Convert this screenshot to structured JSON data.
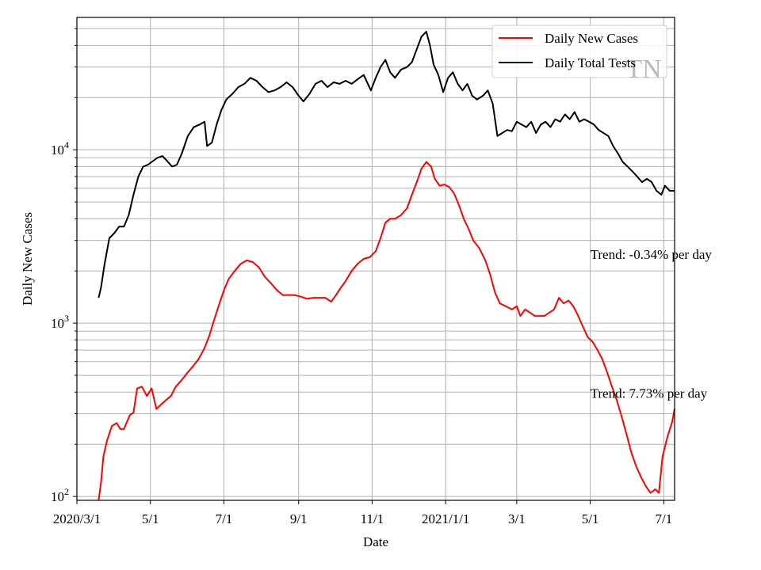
{
  "chart_data": {
    "type": "line",
    "title": "",
    "xlabel": "Date",
    "ylabel": "Daily New Cases",
    "yscale": "log",
    "ylim": [
      95,
      58000
    ],
    "xlim": [
      "2020-03-01",
      "2021-07-10"
    ],
    "grid": true,
    "legend_position": "top-right",
    "watermark": "TN",
    "x_ticks": [
      {
        "date": "2020-03-01",
        "label": "2020/3/1"
      },
      {
        "date": "2020-05-01",
        "label": "5/1"
      },
      {
        "date": "2020-07-01",
        "label": "7/1"
      },
      {
        "date": "2020-09-01",
        "label": "9/1"
      },
      {
        "date": "2020-11-01",
        "label": "11/1"
      },
      {
        "date": "2021-01-01",
        "label": "2021/1/1"
      },
      {
        "date": "2021-03-01",
        "label": "3/1"
      },
      {
        "date": "2021-05-01",
        "label": "5/1"
      },
      {
        "date": "2021-07-01",
        "label": "7/1"
      }
    ],
    "y_ticks": [
      {
        "value": 100,
        "base": "10",
        "exp": "2"
      },
      {
        "value": 1000,
        "base": "10",
        "exp": "3"
      },
      {
        "value": 10000,
        "base": "10",
        "exp": "4"
      }
    ],
    "annotations": [
      {
        "text": "Trend: -0.34% per day",
        "date": "2021-05-01",
        "value": 2350
      },
      {
        "text": "Trend: 7.73% per day",
        "date": "2021-05-01",
        "value": 370
      }
    ],
    "series": [
      {
        "name": "Daily New Cases",
        "color": "#ff0000",
        "points": [
          [
            "2020-03-19",
            95
          ],
          [
            "2020-03-21",
            120
          ],
          [
            "2020-03-23",
            170
          ],
          [
            "2020-03-26",
            210
          ],
          [
            "2020-03-30",
            255
          ],
          [
            "2020-04-03",
            265
          ],
          [
            "2020-04-06",
            245
          ],
          [
            "2020-04-09",
            245
          ],
          [
            "2020-04-14",
            295
          ],
          [
            "2020-04-17",
            305
          ],
          [
            "2020-04-20",
            420
          ],
          [
            "2020-04-24",
            430
          ],
          [
            "2020-04-28",
            380
          ],
          [
            "2020-05-02",
            420
          ],
          [
            "2020-05-06",
            320
          ],
          [
            "2020-05-10",
            340
          ],
          [
            "2020-05-14",
            360
          ],
          [
            "2020-05-18",
            380
          ],
          [
            "2020-05-22",
            430
          ],
          [
            "2020-05-27",
            470
          ],
          [
            "2020-06-01",
            520
          ],
          [
            "2020-06-05",
            560
          ],
          [
            "2020-06-10",
            620
          ],
          [
            "2020-06-15",
            720
          ],
          [
            "2020-06-19",
            850
          ],
          [
            "2020-06-23",
            1050
          ],
          [
            "2020-06-27",
            1280
          ],
          [
            "2020-07-01",
            1550
          ],
          [
            "2020-07-05",
            1800
          ],
          [
            "2020-07-10",
            2000
          ],
          [
            "2020-07-15",
            2200
          ],
          [
            "2020-07-20",
            2300
          ],
          [
            "2020-07-25",
            2250
          ],
          [
            "2020-07-30",
            2100
          ],
          [
            "2020-08-04",
            1850
          ],
          [
            "2020-08-09",
            1700
          ],
          [
            "2020-08-14",
            1550
          ],
          [
            "2020-08-19",
            1450
          ],
          [
            "2020-08-24",
            1450
          ],
          [
            "2020-08-29",
            1450
          ],
          [
            "2020-09-03",
            1420
          ],
          [
            "2020-09-08",
            1380
          ],
          [
            "2020-09-13",
            1400
          ],
          [
            "2020-09-18",
            1400
          ],
          [
            "2020-09-23",
            1400
          ],
          [
            "2020-09-28",
            1330
          ],
          [
            "2020-10-02",
            1450
          ],
          [
            "2020-10-06",
            1600
          ],
          [
            "2020-10-10",
            1750
          ],
          [
            "2020-10-15",
            2000
          ],
          [
            "2020-10-20",
            2200
          ],
          [
            "2020-10-25",
            2350
          ],
          [
            "2020-10-30",
            2400
          ],
          [
            "2020-11-04",
            2600
          ],
          [
            "2020-11-08",
            3100
          ],
          [
            "2020-11-12",
            3800
          ],
          [
            "2020-11-16",
            4000
          ],
          [
            "2020-11-20",
            4000
          ],
          [
            "2020-11-25",
            4200
          ],
          [
            "2020-11-30",
            4600
          ],
          [
            "2020-12-04",
            5500
          ],
          [
            "2020-12-08",
            6500
          ],
          [
            "2020-12-12",
            7800
          ],
          [
            "2020-12-16",
            8500
          ],
          [
            "2020-12-20",
            8000
          ],
          [
            "2020-12-23",
            6800
          ],
          [
            "2020-12-27",
            6200
          ],
          [
            "2020-12-31",
            6300
          ],
          [
            "2021-01-04",
            6100
          ],
          [
            "2021-01-08",
            5600
          ],
          [
            "2021-01-12",
            4800
          ],
          [
            "2021-01-16",
            4000
          ],
          [
            "2021-01-20",
            3500
          ],
          [
            "2021-01-24",
            3000
          ],
          [
            "2021-01-29",
            2700
          ],
          [
            "2021-02-03",
            2300
          ],
          [
            "2021-02-07",
            1900
          ],
          [
            "2021-02-11",
            1500
          ],
          [
            "2021-02-15",
            1300
          ],
          [
            "2021-02-20",
            1250
          ],
          [
            "2021-02-25",
            1200
          ],
          [
            "2021-03-01",
            1250
          ],
          [
            "2021-03-04",
            1100
          ],
          [
            "2021-03-08",
            1200
          ],
          [
            "2021-03-12",
            1150
          ],
          [
            "2021-03-16",
            1100
          ],
          [
            "2021-03-20",
            1100
          ],
          [
            "2021-03-24",
            1100
          ],
          [
            "2021-03-28",
            1150
          ],
          [
            "2021-04-01",
            1200
          ],
          [
            "2021-04-05",
            1400
          ],
          [
            "2021-04-09",
            1300
          ],
          [
            "2021-04-13",
            1350
          ],
          [
            "2021-04-17",
            1250
          ],
          [
            "2021-04-21",
            1100
          ],
          [
            "2021-04-25",
            950
          ],
          [
            "2021-04-29",
            830
          ],
          [
            "2021-05-03",
            780
          ],
          [
            "2021-05-07",
            700
          ],
          [
            "2021-05-11",
            620
          ],
          [
            "2021-05-15",
            520
          ],
          [
            "2021-05-19",
            430
          ],
          [
            "2021-05-23",
            360
          ],
          [
            "2021-05-27",
            290
          ],
          [
            "2021-05-31",
            230
          ],
          [
            "2021-06-04",
            180
          ],
          [
            "2021-06-08",
            150
          ],
          [
            "2021-06-12",
            130
          ],
          [
            "2021-06-16",
            115
          ],
          [
            "2021-06-20",
            105
          ],
          [
            "2021-06-24",
            110
          ],
          [
            "2021-06-27",
            105
          ],
          [
            "2021-06-30",
            170
          ],
          [
            "2021-07-04",
            220
          ],
          [
            "2021-07-08",
            270
          ],
          [
            "2021-07-10",
            320
          ]
        ]
      },
      {
        "name": "Daily Total Tests",
        "color": "#000000",
        "points": [
          [
            "2020-03-19",
            1400
          ],
          [
            "2020-03-21",
            1600
          ],
          [
            "2020-03-24",
            2200
          ],
          [
            "2020-03-28",
            3100
          ],
          [
            "2020-04-01",
            3300
          ],
          [
            "2020-04-05",
            3600
          ],
          [
            "2020-04-09",
            3600
          ],
          [
            "2020-04-13",
            4200
          ],
          [
            "2020-04-17",
            5500
          ],
          [
            "2020-04-21",
            7000
          ],
          [
            "2020-04-25",
            8000
          ],
          [
            "2020-04-29",
            8200
          ],
          [
            "2020-05-03",
            8600
          ],
          [
            "2020-05-07",
            9000
          ],
          [
            "2020-05-11",
            9200
          ],
          [
            "2020-05-15",
            8600
          ],
          [
            "2020-05-19",
            8000
          ],
          [
            "2020-05-23",
            8200
          ],
          [
            "2020-05-27",
            9500
          ],
          [
            "2020-06-01",
            12000
          ],
          [
            "2020-06-06",
            13500
          ],
          [
            "2020-06-11",
            14000
          ],
          [
            "2020-06-15",
            14500
          ],
          [
            "2020-06-17",
            10500
          ],
          [
            "2020-06-21",
            11000
          ],
          [
            "2020-06-25",
            14000
          ],
          [
            "2020-06-29",
            17000
          ],
          [
            "2020-07-03",
            19500
          ],
          [
            "2020-07-08",
            21000
          ],
          [
            "2020-07-13",
            23000
          ],
          [
            "2020-07-18",
            24000
          ],
          [
            "2020-07-23",
            26000
          ],
          [
            "2020-07-28",
            25000
          ],
          [
            "2020-08-02",
            23000
          ],
          [
            "2020-08-07",
            21500
          ],
          [
            "2020-08-12",
            22000
          ],
          [
            "2020-08-17",
            23000
          ],
          [
            "2020-08-22",
            24500
          ],
          [
            "2020-08-27",
            23000
          ],
          [
            "2020-09-01",
            20500
          ],
          [
            "2020-09-05",
            19000
          ],
          [
            "2020-09-10",
            21000
          ],
          [
            "2020-09-15",
            24000
          ],
          [
            "2020-09-20",
            25000
          ],
          [
            "2020-09-25",
            23000
          ],
          [
            "2020-09-30",
            24500
          ],
          [
            "2020-10-05",
            24000
          ],
          [
            "2020-10-10",
            25000
          ],
          [
            "2020-10-15",
            24000
          ],
          [
            "2020-10-20",
            25500
          ],
          [
            "2020-10-25",
            27000
          ],
          [
            "2020-10-31",
            22000
          ],
          [
            "2020-11-04",
            26000
          ],
          [
            "2020-11-08",
            30000
          ],
          [
            "2020-11-12",
            33000
          ],
          [
            "2020-11-16",
            28000
          ],
          [
            "2020-11-20",
            26000
          ],
          [
            "2020-11-25",
            29000
          ],
          [
            "2020-11-30",
            30000
          ],
          [
            "2020-12-04",
            32000
          ],
          [
            "2020-12-08",
            38000
          ],
          [
            "2020-12-12",
            45000
          ],
          [
            "2020-12-16",
            48000
          ],
          [
            "2020-12-19",
            40000
          ],
          [
            "2020-12-22",
            31000
          ],
          [
            "2020-12-26",
            27000
          ],
          [
            "2020-12-30",
            21500
          ],
          [
            "2021-01-03",
            26000
          ],
          [
            "2021-01-07",
            28000
          ],
          [
            "2021-01-11",
            24000
          ],
          [
            "2021-01-15",
            22000
          ],
          [
            "2021-01-19",
            24000
          ],
          [
            "2021-01-23",
            20500
          ],
          [
            "2021-01-27",
            19500
          ],
          [
            "2021-02-01",
            20500
          ],
          [
            "2021-02-05",
            22000
          ],
          [
            "2021-02-09",
            18500
          ],
          [
            "2021-02-13",
            12000
          ],
          [
            "2021-02-17",
            12500
          ],
          [
            "2021-02-21",
            13000
          ],
          [
            "2021-02-25",
            12800
          ],
          [
            "2021-03-01",
            14500
          ],
          [
            "2021-03-05",
            14000
          ],
          [
            "2021-03-09",
            13500
          ],
          [
            "2021-03-13",
            14500
          ],
          [
            "2021-03-17",
            12500
          ],
          [
            "2021-03-21",
            14000
          ],
          [
            "2021-03-25",
            14500
          ],
          [
            "2021-03-29",
            13500
          ],
          [
            "2021-04-02",
            15000
          ],
          [
            "2021-04-06",
            14500
          ],
          [
            "2021-04-10",
            16000
          ],
          [
            "2021-04-14",
            15000
          ],
          [
            "2021-04-18",
            16500
          ],
          [
            "2021-04-22",
            14500
          ],
          [
            "2021-04-26",
            15000
          ],
          [
            "2021-04-30",
            14500
          ],
          [
            "2021-05-04",
            14000
          ],
          [
            "2021-05-08",
            13000
          ],
          [
            "2021-05-12",
            12500
          ],
          [
            "2021-05-16",
            12000
          ],
          [
            "2021-05-20",
            10500
          ],
          [
            "2021-05-24",
            9500
          ],
          [
            "2021-05-28",
            8500
          ],
          [
            "2021-06-01",
            8000
          ],
          [
            "2021-06-05",
            7500
          ],
          [
            "2021-06-09",
            7000
          ],
          [
            "2021-06-13",
            6500
          ],
          [
            "2021-06-17",
            6800
          ],
          [
            "2021-06-21",
            6500
          ],
          [
            "2021-06-25",
            5800
          ],
          [
            "2021-06-29",
            5500
          ],
          [
            "2021-07-02",
            6200
          ],
          [
            "2021-07-06",
            5800
          ],
          [
            "2021-07-10",
            5800
          ]
        ]
      }
    ]
  }
}
